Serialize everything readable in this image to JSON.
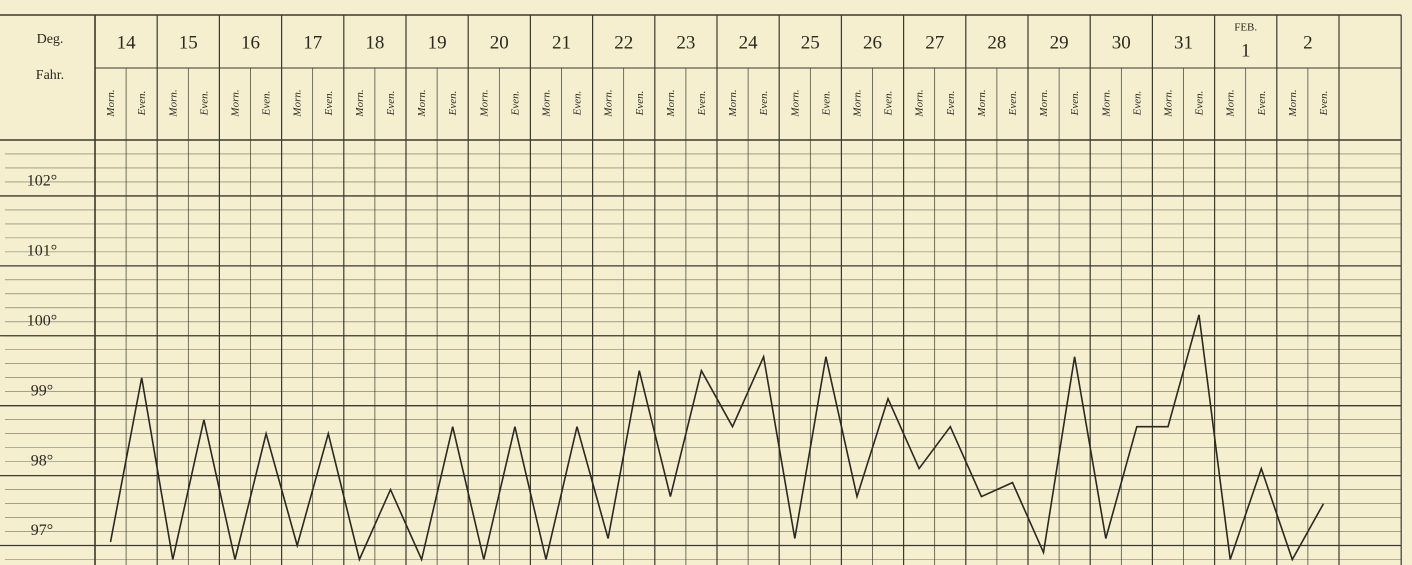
{
  "chart_data": {
    "type": "line",
    "header_labels": [
      "Deg.",
      "Fahr."
    ],
    "month_label": "FEB.",
    "days": [
      "14",
      "15",
      "16",
      "17",
      "18",
      "19",
      "20",
      "21",
      "22",
      "23",
      "24",
      "25",
      "26",
      "27",
      "28",
      "29",
      "30",
      "31",
      "1",
      "2"
    ],
    "categories": [
      "Morn.",
      "Even.",
      "Morn.",
      "Even.",
      "Morn.",
      "Even.",
      "Morn.",
      "Even.",
      "Morn.",
      "Even.",
      "Morn.",
      "Even.",
      "Morn.",
      "Even.",
      "Morn.",
      "Even.",
      "Morn.",
      "Even.",
      "Morn.",
      "Even.",
      "Morn.",
      "Even.",
      "Morn.",
      "Even.",
      "Morn.",
      "Even.",
      "Morn.",
      "Even.",
      "Morn.",
      "Even.",
      "Morn.",
      "Even.",
      "Morn.",
      "Even.",
      "Morn.",
      "Even.",
      "Morn.",
      "Even.",
      "Morn.",
      "Even."
    ],
    "series": [
      {
        "color": "#2a2a22",
        "values": [
          97.05,
          99.4,
          96.8,
          98.8,
          96.8,
          98.6,
          97.0,
          98.6,
          96.8,
          97.8,
          96.8,
          98.7,
          96.8,
          98.7,
          96.8,
          98.7,
          97.1,
          99.5,
          97.7,
          99.5,
          98.7,
          99.7,
          97.1,
          99.7,
          97.7,
          99.1,
          98.1,
          98.7,
          97.7,
          97.9,
          96.9,
          99.7,
          97.1,
          98.7,
          98.7,
          100.3,
          96.8,
          98.1,
          96.8,
          97.6
        ]
      }
    ],
    "ylim": [
      96.75,
      102.8
    ],
    "yticks": [
      {
        "value": 97,
        "label": "97°"
      },
      {
        "value": 98,
        "label": "98°"
      },
      {
        "value": 99,
        "label": "99°"
      },
      {
        "value": 100,
        "label": "100°"
      },
      {
        "value": 101,
        "label": "101°"
      },
      {
        "value": 102,
        "label": "102°"
      }
    ],
    "grid": true
  }
}
